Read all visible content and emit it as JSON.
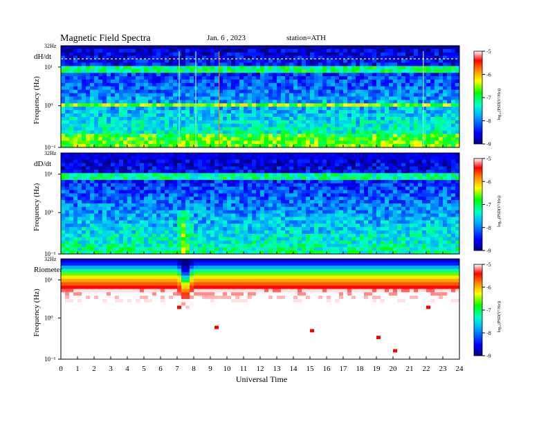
{
  "header": {
    "title": "Magnetic  Field  Spectra",
    "date": "Jan. 6  , 2023",
    "station": "station=ATH"
  },
  "chart_data": [
    {
      "type": "heatmap",
      "panel_label": "dH/dt",
      "ylabel": "Frequency  (Hz)",
      "y_top_label": "32Hz",
      "y_tick_labels": [
        "10¹",
        "10⁰",
        "10⁻¹"
      ],
      "xlim": [
        0,
        24
      ],
      "colorbar": {
        "label": "log₁₀(PSD(V²/Hz))",
        "range": [
          -9,
          -5
        ],
        "tick_labels": [
          "-5",
          "-6",
          "-7",
          "-8",
          "-9"
        ]
      }
    },
    {
      "type": "heatmap",
      "panel_label": "dD/dt",
      "ylabel": "Frequency  (Hz)",
      "y_top_label": "32Hz",
      "y_tick_labels": [
        "10¹",
        "10⁰",
        "10⁻¹"
      ],
      "xlim": [
        0,
        24
      ],
      "colorbar": {
        "label": "log₁₀(PSD(V²/Hz))",
        "range": [
          -9,
          -5
        ],
        "tick_labels": [
          "-5",
          "-6",
          "-7",
          "-8",
          "-9"
        ]
      }
    },
    {
      "type": "heatmap",
      "panel_label": "Riometer",
      "ylabel": "Frequency  (Hz)",
      "y_top_label": "32Hz",
      "y_tick_labels": [
        "10¹",
        "10⁰",
        "10⁻¹"
      ],
      "xlim": [
        0,
        24
      ],
      "xlabel": "Universal Time",
      "x_tick_labels": [
        "0",
        "1",
        "2",
        "3",
        "4",
        "5",
        "6",
        "7",
        "8",
        "9",
        "10",
        "11",
        "12",
        "13",
        "14",
        "15",
        "16",
        "17",
        "18",
        "19",
        "20",
        "21",
        "22",
        "23",
        "24"
      ],
      "colorbar": {
        "label": "log₁₀(PSD(V²/Hz))",
        "range": [
          -9,
          -5
        ],
        "tick_labels": [
          "-5",
          "-6",
          "-7",
          "-8",
          "-9"
        ]
      }
    }
  ]
}
